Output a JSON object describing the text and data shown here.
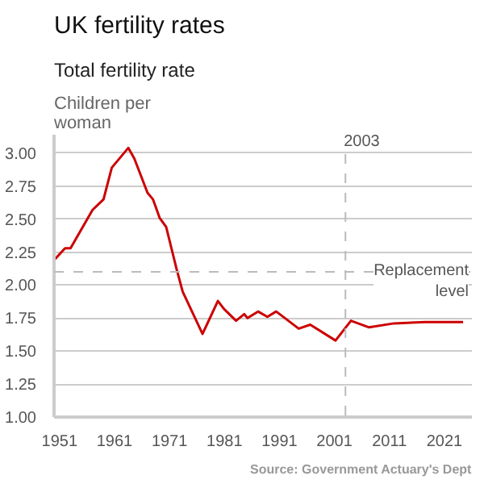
{
  "chart_data": {
    "type": "line",
    "title": "UK fertility rates",
    "subtitle": "Total fertility rate",
    "ylabel": "Children per\nwoman",
    "x": [
      1950,
      1952,
      1953,
      1957,
      1959,
      1960.5,
      1963.5,
      1964.6,
      1967,
      1968,
      1969.2,
      1970.4,
      1972.3,
      1973.4,
      1977,
      1979.8,
      1980.9,
      1983.1,
      1984.6,
      1985.2,
      1987.1,
      1988.8,
      1990.4,
      1994.5,
      1996.6,
      2001.2,
      2004,
      2007.3,
      2011.8,
      2017.5,
      2024.4
    ],
    "series": [
      {
        "color": "#cc0000",
        "values": [
          2.19,
          2.28,
          2.28,
          2.57,
          2.65,
          2.89,
          3.04,
          2.96,
          2.7,
          2.65,
          2.51,
          2.44,
          2.12,
          1.95,
          1.63,
          1.88,
          1.82,
          1.73,
          1.78,
          1.75,
          1.8,
          1.76,
          1.8,
          1.67,
          1.7,
          1.58,
          1.73,
          1.68,
          1.71,
          1.72,
          1.72
        ]
      }
    ],
    "xlim": [
      1950,
      2026
    ],
    "ylim": [
      1.0,
      3.14
    ],
    "xticks": [
      1951,
      1961,
      1971,
      1981,
      1991,
      2001,
      2011,
      2021
    ],
    "yticks": [
      {
        "value": 1.0,
        "label": "1.00"
      },
      {
        "value": 1.25,
        "label": "1.25"
      },
      {
        "value": 1.5,
        "label": "1.50"
      },
      {
        "value": 1.75,
        "label": "1.75"
      },
      {
        "value": 2.0,
        "label": "2.00"
      },
      {
        "value": 2.25,
        "label": "2.25"
      },
      {
        "value": 2.5,
        "label": "2.50"
      },
      {
        "value": 2.75,
        "label": "2.75"
      },
      {
        "value": 3.0,
        "label": "3.00"
      }
    ],
    "ref_lines": [
      {
        "axis": "x",
        "value": 2003,
        "label": "2003",
        "color": "#bbbbbb",
        "line_style": "dashed"
      },
      {
        "axis": "y",
        "value": 2.1,
        "label": "Replacement\nlevel",
        "color": "#bbbbbb",
        "line_style": "dashed"
      }
    ],
    "annotations": [
      "Source: Government Actuary's Dept"
    ],
    "grid": "y",
    "line_style": "solid",
    "marker": "none"
  }
}
